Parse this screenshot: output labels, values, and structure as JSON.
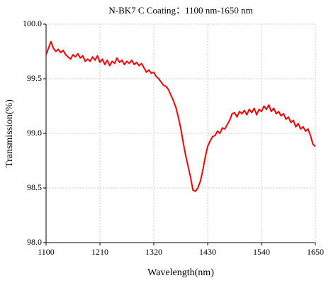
{
  "chart_data": {
    "type": "line",
    "title": "N-BK7 C Coating：1100 nm-1650 nm",
    "x_label": "Wavelength(nm)",
    "y_label": "Transmission(%)",
    "x": [
      1100,
      1105,
      1110,
      1115,
      1120,
      1125,
      1130,
      1135,
      1140,
      1145,
      1150,
      1155,
      1160,
      1165,
      1170,
      1175,
      1180,
      1185,
      1190,
      1195,
      1200,
      1205,
      1210,
      1215,
      1220,
      1225,
      1230,
      1235,
      1240,
      1245,
      1250,
      1255,
      1260,
      1265,
      1270,
      1275,
      1280,
      1285,
      1290,
      1295,
      1300,
      1305,
      1310,
      1315,
      1320,
      1325,
      1330,
      1335,
      1340,
      1345,
      1350,
      1355,
      1360,
      1365,
      1370,
      1375,
      1380,
      1385,
      1390,
      1395,
      1400,
      1405,
      1410,
      1415,
      1420,
      1425,
      1430,
      1435,
      1440,
      1445,
      1450,
      1455,
      1460,
      1465,
      1470,
      1475,
      1480,
      1485,
      1490,
      1495,
      1500,
      1505,
      1510,
      1515,
      1520,
      1525,
      1530,
      1535,
      1540,
      1545,
      1550,
      1555,
      1560,
      1565,
      1570,
      1575,
      1580,
      1585,
      1590,
      1595,
      1600,
      1605,
      1610,
      1615,
      1620,
      1625,
      1630,
      1635,
      1640,
      1645,
      1650
    ],
    "series": [
      {
        "name": "Transmission",
        "color": "#ff0000",
        "values": [
          99.72,
          99.78,
          99.84,
          99.78,
          99.75,
          99.77,
          99.74,
          99.76,
          99.72,
          99.7,
          99.68,
          99.72,
          99.7,
          99.73,
          99.69,
          99.71,
          99.66,
          99.68,
          99.66,
          99.7,
          99.67,
          99.71,
          99.65,
          99.68,
          99.63,
          99.67,
          99.62,
          99.66,
          99.64,
          99.69,
          99.65,
          99.67,
          99.63,
          99.66,
          99.64,
          99.67,
          99.63,
          99.65,
          99.62,
          99.64,
          99.6,
          99.56,
          99.58,
          99.55,
          99.56,
          99.52,
          99.5,
          99.47,
          99.44,
          99.43,
          99.4,
          99.35,
          99.3,
          99.24,
          99.15,
          99.05,
          98.92,
          98.8,
          98.7,
          98.6,
          98.48,
          98.47,
          98.5,
          98.56,
          98.66,
          98.78,
          98.88,
          98.93,
          98.97,
          98.98,
          99.02,
          99.0,
          99.05,
          99.04,
          99.08,
          99.12,
          99.18,
          99.19,
          99.15,
          99.2,
          99.18,
          99.21,
          99.17,
          99.22,
          99.19,
          99.23,
          99.17,
          99.22,
          99.2,
          99.25,
          99.22,
          99.26,
          99.2,
          99.23,
          99.18,
          99.2,
          99.16,
          99.18,
          99.13,
          99.15,
          99.1,
          99.12,
          99.06,
          99.09,
          99.04,
          99.06,
          99.02,
          99.04,
          98.98,
          98.9,
          98.88
        ]
      }
    ],
    "xlim": [
      1100,
      1650
    ],
    "xticks": [
      1100,
      1210,
      1320,
      1430,
      1540,
      1650
    ],
    "ylim": [
      98,
      100
    ],
    "yticks": [
      {
        "value": 98,
        "label": "98.0"
      },
      {
        "value": 98.5,
        "label": "98.5"
      },
      {
        "value": 99,
        "label": "99.0"
      },
      99.5,
      {
        "value": 100,
        "label": "100.0"
      }
    ],
    "grid": true
  }
}
